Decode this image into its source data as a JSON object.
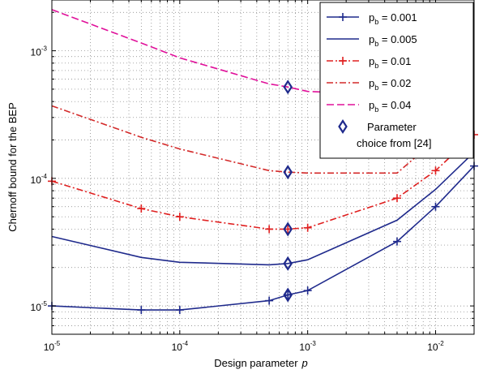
{
  "chart_data": {
    "type": "line",
    "xscale": "log",
    "yscale": "log",
    "xlim": [
      1e-05,
      0.02
    ],
    "ylim": [
      6e-06,
      0.0025
    ],
    "grid": true,
    "legend_position": "top-right",
    "xlabel": "Design parameter",
    "xlabel_symbol": "p",
    "ylabel": "Chernoff bound for the BEP",
    "x_ticks": [
      {
        "base": "10",
        "exp": "-5"
      },
      {
        "base": "10",
        "exp": "-4"
      },
      {
        "base": "10",
        "exp": "-3"
      },
      {
        "base": "10",
        "exp": "-2"
      }
    ],
    "y_ticks": [
      {
        "base": "10",
        "exp": "-5"
      },
      {
        "base": "10",
        "exp": "-4"
      },
      {
        "base": "10",
        "exp": "-3"
      }
    ],
    "series": [
      {
        "name_main": "p",
        "name_sub": "b",
        "name_rest": " = 0.001",
        "color": "#1f2a8c",
        "dash": "",
        "marker": "plus",
        "x": [
          1e-05,
          5e-05,
          0.0001,
          0.0005,
          0.0007,
          0.001,
          0.005,
          0.01,
          0.02
        ],
        "y": [
          1e-05,
          9.3e-06,
          9.3e-06,
          1.1e-05,
          1.22e-05,
          1.32e-05,
          3.2e-05,
          6e-05,
          0.000125
        ]
      },
      {
        "name_main": "p",
        "name_sub": "b",
        "name_rest": " = 0.005",
        "color": "#1f2a8c",
        "dash": "",
        "marker": "none",
        "x": [
          1e-05,
          5e-05,
          0.0001,
          0.0005,
          0.0007,
          0.001,
          0.005,
          0.01,
          0.02
        ],
        "y": [
          3.5e-05,
          2.4e-05,
          2.2e-05,
          2.1e-05,
          2.15e-05,
          2.3e-05,
          4.7e-05,
          8.2e-05,
          0.00016
        ]
      },
      {
        "name_main": "p",
        "name_sub": "b",
        "name_rest": " = 0.01",
        "color": "#e02020",
        "dash": "8,3,2,3",
        "marker": "plus",
        "x": [
          1e-05,
          5e-05,
          0.0001,
          0.0005,
          0.0007,
          0.001,
          0.005,
          0.01,
          0.02
        ],
        "y": [
          9.5e-05,
          5.8e-05,
          5e-05,
          4e-05,
          4e-05,
          4.1e-05,
          7e-05,
          0.000115,
          0.00022
        ]
      },
      {
        "name_main": "p",
        "name_sub": "b",
        "name_rest": " = 0.02",
        "color": "#d42a2a",
        "dash": "8,3,2,3",
        "marker": "none",
        "x": [
          1e-05,
          5e-05,
          0.0001,
          0.0005,
          0.0007,
          0.001,
          0.005,
          0.01,
          0.02
        ],
        "y": [
          0.00037,
          0.00021,
          0.00017,
          0.000115,
          0.000112,
          0.00011,
          0.00011,
          0.0002,
          0.00039
        ]
      },
      {
        "name_main": "p",
        "name_sub": "b",
        "name_rest": " = 0.04",
        "color": "#e0109a",
        "dash": "9,4",
        "marker": "none",
        "x": [
          1e-05,
          5e-05,
          0.0001,
          0.0005,
          0.0007,
          0.001,
          0.005,
          0.01,
          0.02
        ],
        "y": [
          0.0021,
          0.00115,
          0.00088,
          0.00055,
          0.00052,
          0.00048,
          0.00045,
          0.00068,
          0.00105
        ]
      }
    ],
    "markers": {
      "name_line1": "Parameter",
      "name_line2": "choice from [24]",
      "color": "#1f2a8c",
      "x": 0.0007,
      "y": [
        1.22e-05,
        2.15e-05,
        4e-05,
        0.000112,
        0.00052
      ]
    }
  }
}
